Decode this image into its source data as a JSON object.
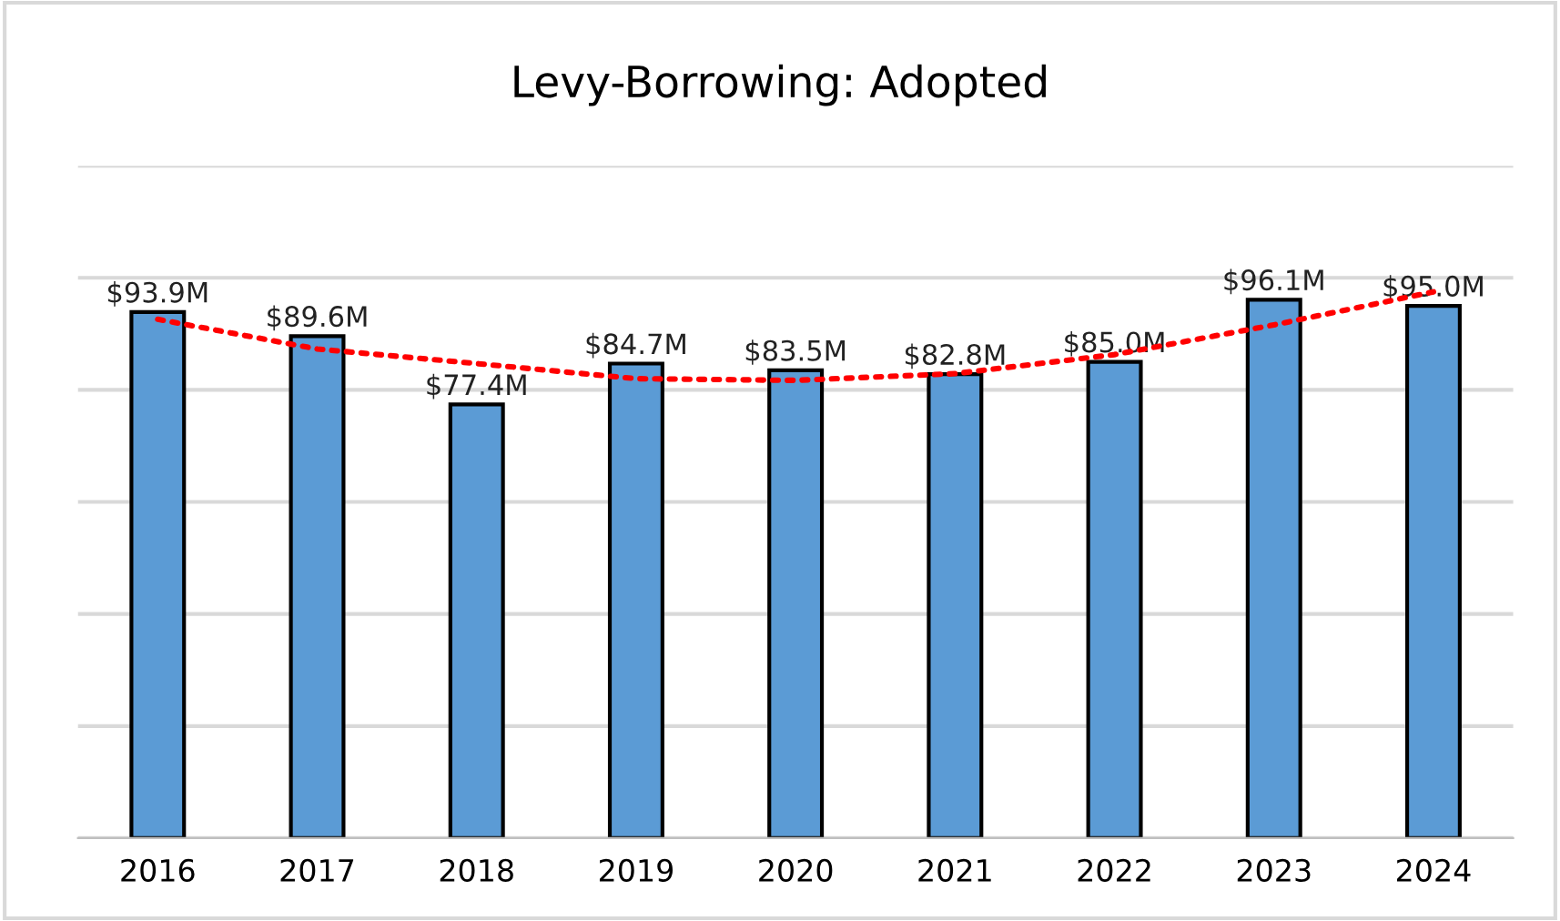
{
  "chart_data": {
    "type": "bar",
    "title": "Levy-Borrowing: Adopted",
    "categories": [
      "2016",
      "2017",
      "2018",
      "2019",
      "2020",
      "2021",
      "2022",
      "2023",
      "2024"
    ],
    "series": [
      {
        "color": "#5b9bd5",
        "values": [
          93.9,
          89.6,
          77.4,
          84.7,
          83.5,
          82.8,
          85.0,
          96.1,
          95.0
        ],
        "value_labels": [
          "$93.9M",
          "$89.6M",
          "$77.4M",
          "$84.7M",
          "$83.5M",
          "$82.8M",
          "$85.0M",
          "$96.1M",
          "$95.0M"
        ]
      },
      {
        "type": "line",
        "color": "#ff0000",
        "line_style": "dotted",
        "values": [
          92.6,
          87.3,
          84.7,
          82.0,
          81.7,
          82.9,
          86.3,
          91.6,
          97.5
        ]
      }
    ],
    "ylim": [
      0,
      120
    ],
    "yticks": [
      {
        "value": 0,
        "label": null
      },
      {
        "value": 20,
        "label": null
      },
      {
        "value": 40,
        "label": null
      },
      {
        "value": 60,
        "label": null
      },
      {
        "value": 80,
        "label": null
      },
      {
        "value": 100,
        "label": null
      },
      {
        "value": 120,
        "label": null
      }
    ],
    "grid": "y",
    "tick_labels": "x",
    "legend": false
  }
}
